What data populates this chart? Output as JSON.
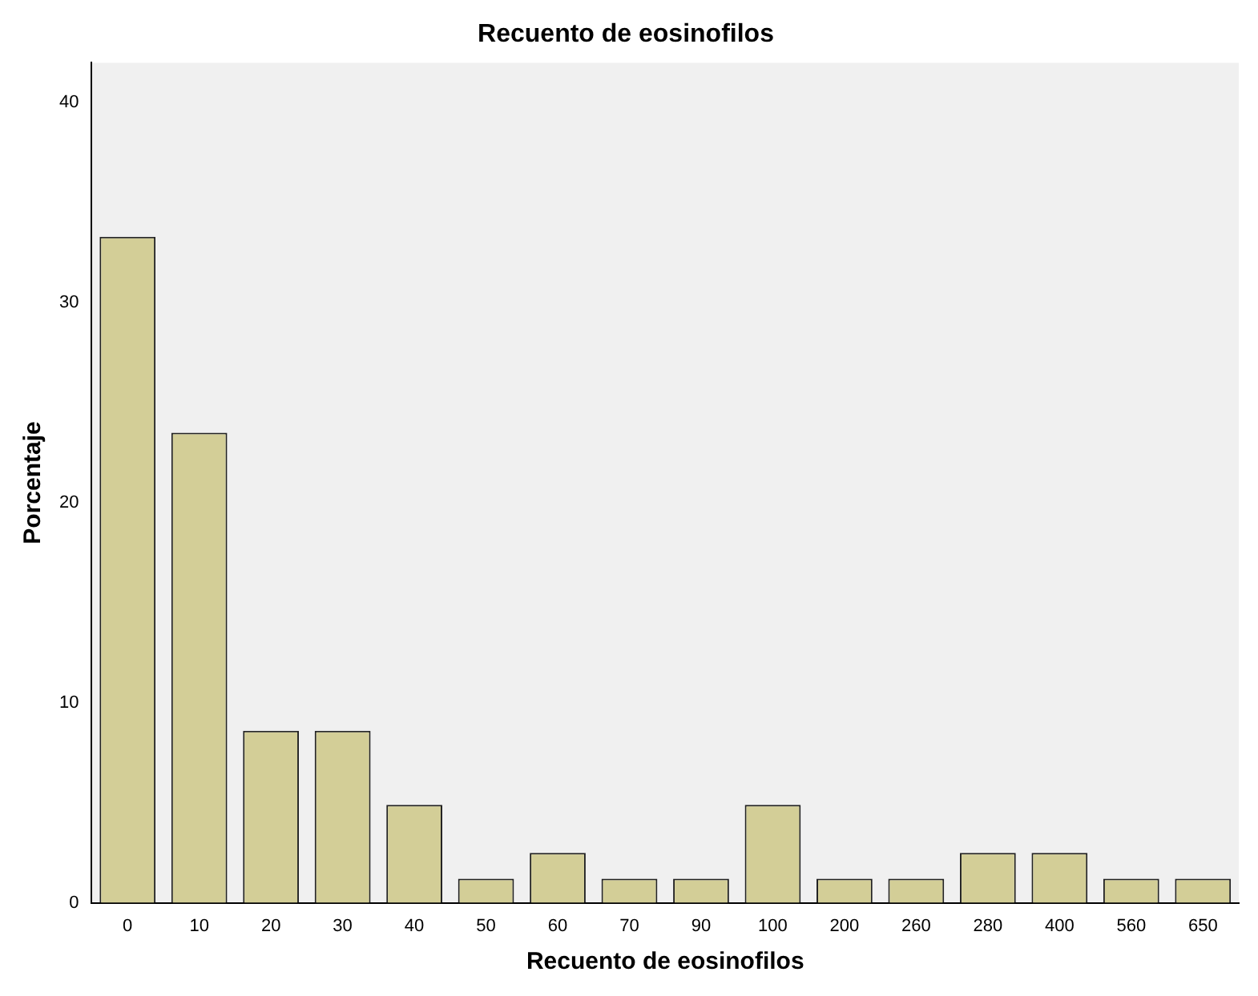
{
  "chart_data": {
    "type": "bar",
    "title": "Recuento de eosinofilos",
    "xlabel": "Recuento de eosinofilos",
    "ylabel": "Porcentaje",
    "categories": [
      "0",
      "10",
      "20",
      "30",
      "40",
      "50",
      "60",
      "70",
      "90",
      "100",
      "200",
      "260",
      "280",
      "400",
      "560",
      "650"
    ],
    "values": [
      33.3,
      23.5,
      8.6,
      8.6,
      4.9,
      1.2,
      2.5,
      1.2,
      1.2,
      4.9,
      1.2,
      1.2,
      2.5,
      2.5,
      1.2,
      1.2
    ],
    "color": "#d3ce97",
    "ylim": [
      0,
      42
    ],
    "yticks": [
      0,
      10,
      20,
      30,
      40
    ],
    "grid": false,
    "legend": false
  }
}
